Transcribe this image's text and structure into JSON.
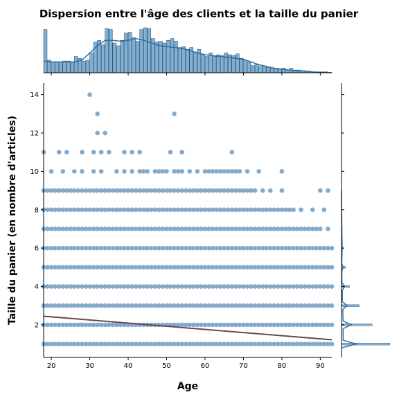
{
  "chart_data": {
    "type": "scatter",
    "title": "Dispersion entre l'âge des clients et la taille du panier",
    "xlabel": "Age",
    "ylabel": "Taille du panier (en nombre d'articles)",
    "xlim": [
      18,
      93
    ],
    "ylim": [
      0.3,
      14.6
    ],
    "x_ticks": [
      20,
      30,
      40,
      50,
      60,
      70,
      80,
      90
    ],
    "y_ticks": [
      2,
      4,
      6,
      8,
      10,
      12,
      14
    ],
    "grid": false,
    "colors": {
      "points": "#6f9bc2",
      "regression": "#6b4555",
      "histogram": "#7fb0d6",
      "histogram_edge": "#2c3e50",
      "kde": "#2a6fa8"
    },
    "regression_line": {
      "x": [
        18,
        93
      ],
      "y": [
        2.45,
        1.22
      ]
    },
    "dense_bands": [
      {
        "y": 1,
        "x_range": [
          18,
          93
        ]
      },
      {
        "y": 2,
        "x_range": [
          18,
          93
        ]
      },
      {
        "y": 3,
        "x_range": [
          18,
          93
        ]
      },
      {
        "y": 4,
        "x_range": [
          18,
          93
        ]
      },
      {
        "y": 5,
        "x_range": [
          18,
          93
        ]
      },
      {
        "y": 6,
        "x_range": [
          18,
          92
        ]
      },
      {
        "y": 7,
        "x_range": [
          18,
          89
        ]
      },
      {
        "y": 8,
        "x_range": [
          18,
          83
        ]
      }
    ],
    "band_gaps": [
      {
        "y": 8,
        "x": [
          85,
          88,
          91
        ]
      },
      {
        "y": 7,
        "x": [
          90,
          92
        ]
      },
      {
        "y": 6,
        "x": [
          93
        ]
      }
    ],
    "sparse_points": [
      {
        "y": 9,
        "x": [
          18,
          19,
          20,
          21,
          22,
          23,
          24,
          25,
          26,
          27,
          28,
          29,
          30,
          31,
          32,
          33,
          34,
          35,
          36,
          37,
          38,
          39,
          40,
          41,
          42,
          43,
          44,
          45,
          46,
          47,
          48,
          49,
          50,
          51,
          52,
          53,
          54,
          55,
          56,
          57,
          58,
          59,
          60,
          61,
          62,
          63,
          64,
          65,
          66,
          67,
          68,
          69,
          70,
          71,
          72,
          73,
          75,
          77,
          80,
          90,
          92
        ]
      },
      {
        "y": 10,
        "x": [
          20,
          23,
          26,
          28,
          31,
          33,
          37,
          39,
          41,
          43,
          44,
          45,
          47,
          48,
          49,
          50,
          52,
          53,
          54,
          56,
          58,
          60,
          61,
          62,
          63,
          64,
          65,
          66,
          67,
          68,
          69,
          71,
          74,
          80
        ]
      },
      {
        "y": 11,
        "x": [
          18,
          22,
          24,
          28,
          31,
          33,
          35,
          39,
          41,
          43,
          51,
          54,
          67
        ]
      },
      {
        "y": 12,
        "x": [
          32,
          34
        ]
      },
      {
        "y": 13,
        "x": [
          32,
          52
        ]
      },
      {
        "y": 14,
        "x": [
          30
        ]
      }
    ],
    "age_histogram": {
      "bin_start": 18,
      "bin_width": 1,
      "counts": [
        48,
        14,
        12,
        11,
        12,
        13,
        13,
        12,
        18,
        16,
        13,
        14,
        22,
        34,
        36,
        31,
        49,
        48,
        33,
        30,
        36,
        44,
        45,
        39,
        35,
        48,
        50,
        49,
        38,
        34,
        35,
        33,
        36,
        38,
        35,
        28,
        29,
        26,
        28,
        23,
        26,
        20,
        18,
        22,
        18,
        20,
        19,
        22,
        20,
        19,
        21,
        16,
        14,
        12,
        8,
        9,
        7,
        7,
        6,
        5,
        5,
        4,
        5,
        3,
        5,
        3,
        3,
        2,
        2,
        1,
        1,
        1,
        1,
        1,
        0
      ]
    },
    "age_kde": [
      [
        18,
        13
      ],
      [
        20,
        12
      ],
      [
        22,
        12
      ],
      [
        24,
        12
      ],
      [
        26,
        12
      ],
      [
        28,
        14
      ],
      [
        30,
        22
      ],
      [
        32,
        30
      ],
      [
        34,
        36
      ],
      [
        36,
        36
      ],
      [
        38,
        35
      ],
      [
        40,
        36
      ],
      [
        42,
        38
      ],
      [
        44,
        36
      ],
      [
        46,
        33
      ],
      [
        48,
        30
      ],
      [
        50,
        29
      ],
      [
        52,
        28
      ],
      [
        54,
        27
      ],
      [
        56,
        25
      ],
      [
        58,
        22
      ],
      [
        60,
        20
      ],
      [
        62,
        19
      ],
      [
        64,
        18
      ],
      [
        66,
        17
      ],
      [
        68,
        16
      ],
      [
        70,
        15
      ],
      [
        72,
        12
      ],
      [
        74,
        9
      ],
      [
        76,
        7
      ],
      [
        78,
        5
      ],
      [
        80,
        4
      ],
      [
        82,
        3
      ],
      [
        84,
        2
      ],
      [
        86,
        2
      ],
      [
        88,
        1
      ],
      [
        90,
        0.5
      ],
      [
        92,
        0.2
      ],
      [
        93,
        0
      ]
    ],
    "basket_histogram": [
      {
        "y": 1,
        "count": 60
      },
      {
        "y": 2,
        "count": 38
      },
      {
        "y": 3,
        "count": 22
      },
      {
        "y": 4,
        "count": 10
      },
      {
        "y": 5,
        "count": 5
      },
      {
        "y": 6,
        "count": 2
      },
      {
        "y": 7,
        "count": 1
      },
      {
        "y": 8,
        "count": 0.5
      }
    ],
    "basket_kde": [
      [
        0.8,
        0
      ],
      [
        1,
        18
      ],
      [
        1.2,
        2
      ],
      [
        1.8,
        2
      ],
      [
        2,
        12
      ],
      [
        2.2,
        2
      ],
      [
        2.8,
        1.5
      ],
      [
        3,
        7
      ],
      [
        3.2,
        1
      ],
      [
        3.8,
        1
      ],
      [
        4,
        4
      ],
      [
        4.2,
        0.5
      ],
      [
        4.8,
        0.4
      ],
      [
        5,
        2
      ],
      [
        5.2,
        0.3
      ],
      [
        6,
        0.8
      ],
      [
        7,
        0.4
      ],
      [
        8,
        0.2
      ],
      [
        9,
        0
      ]
    ]
  }
}
